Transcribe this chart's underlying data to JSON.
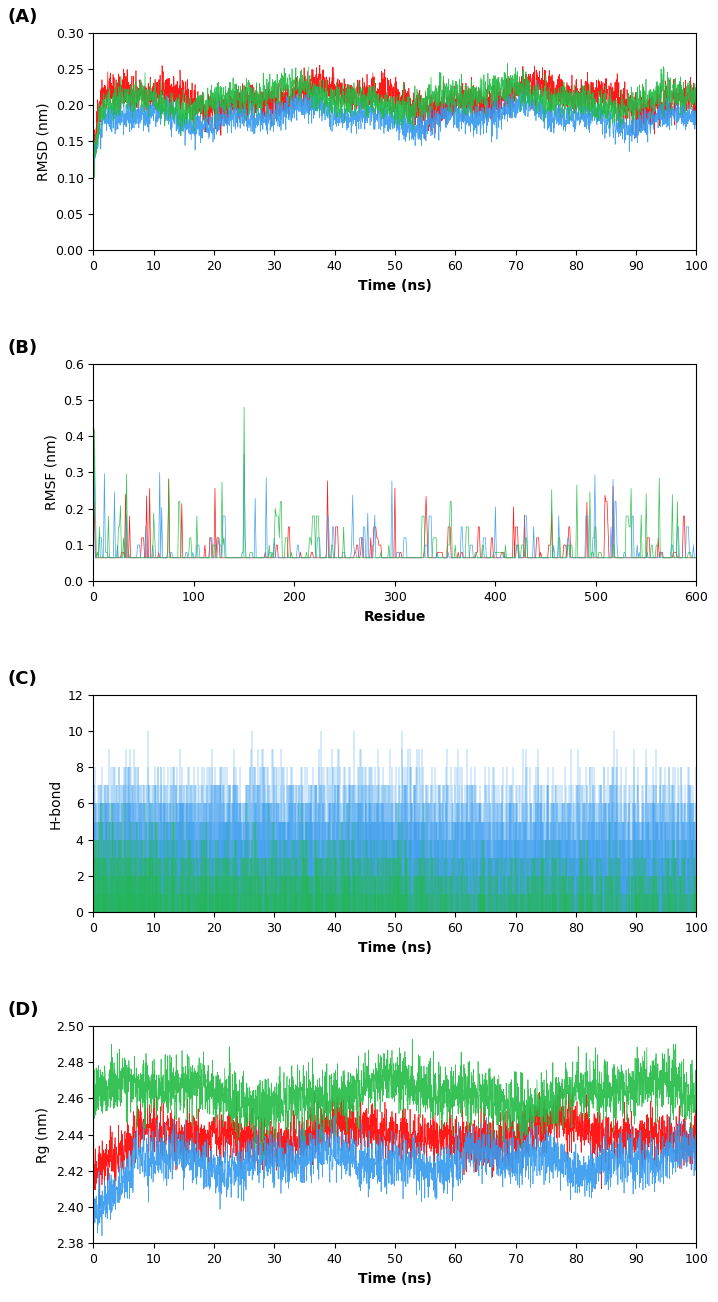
{
  "panel_labels": [
    "(A)",
    "(B)",
    "(C)",
    "(D)"
  ],
  "panel_label_fontsize": 13,
  "panel_label_fontweight": "bold",
  "colors": {
    "red": "#FF0000",
    "blue": "#3399EE",
    "green": "#22BB44"
  },
  "rmsd": {
    "ylabel": "RMSD (nm)",
    "xlabel": "Time (ns)",
    "xlim": [
      0,
      100
    ],
    "ylim": [
      0,
      0.3
    ],
    "yticks": [
      0,
      0.05,
      0.1,
      0.15,
      0.2,
      0.25,
      0.3
    ],
    "xticks": [
      0,
      10,
      20,
      30,
      40,
      50,
      60,
      70,
      80,
      90,
      100
    ]
  },
  "rmsf": {
    "ylabel": "RMSF (nm)",
    "xlabel": "Residue",
    "xlim": [
      0,
      600
    ],
    "ylim": [
      0,
      0.6
    ],
    "yticks": [
      0,
      0.1,
      0.2,
      0.3,
      0.4,
      0.5,
      0.6
    ],
    "xticks": [
      0,
      100,
      200,
      300,
      400,
      500,
      600
    ]
  },
  "hbond": {
    "ylabel": "H-bond",
    "xlabel": "Time (ns)",
    "xlim": [
      0,
      100
    ],
    "ylim": [
      0,
      12
    ],
    "yticks": [
      0,
      2,
      4,
      6,
      8,
      10,
      12
    ],
    "xticks": [
      0,
      10,
      20,
      30,
      40,
      50,
      60,
      70,
      80,
      90,
      100
    ]
  },
  "rg": {
    "ylabel": "Rg (nm)",
    "xlabel": "Time (ns)",
    "xlim": [
      0,
      100
    ],
    "ylim": [
      2.38,
      2.5
    ],
    "yticks": [
      2.38,
      2.4,
      2.42,
      2.44,
      2.46,
      2.48,
      2.5
    ],
    "xticks": [
      0,
      10,
      20,
      30,
      40,
      50,
      60,
      70,
      80,
      90,
      100
    ]
  },
  "seed": 42,
  "tick_fontsize": 9,
  "label_fontsize": 10
}
